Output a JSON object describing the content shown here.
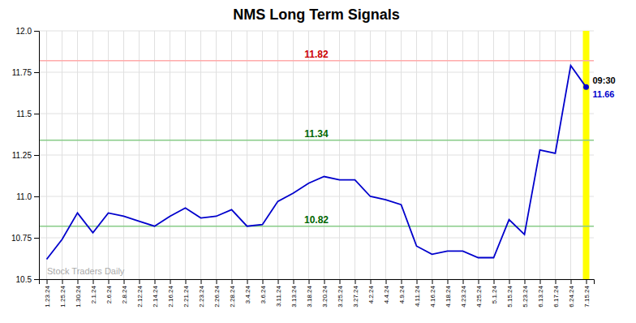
{
  "chart_data": {
    "type": "line",
    "title": "NMS Long Term Signals",
    "categories": [
      "1.23.24",
      "1.25.24",
      "1.30.24",
      "2.1.24",
      "2.6.24",
      "2.8.24",
      "2.12.24",
      "2.14.24",
      "2.16.24",
      "2.21.24",
      "2.23.24",
      "2.26.24",
      "2.28.24",
      "3.4.24",
      "3.6.24",
      "3.11.24",
      "3.13.24",
      "3.18.24",
      "3.20.24",
      "3.25.24",
      "3.27.24",
      "4.2.24",
      "4.4.24",
      "4.9.24",
      "4.11.24",
      "4.16.24",
      "4.18.24",
      "4.23.24",
      "4.25.24",
      "5.1.24",
      "5.15.24",
      "5.23.24",
      "6.13.24",
      "6.17.24",
      "6.24.24",
      "7.15.24"
    ],
    "values": [
      10.62,
      10.74,
      10.9,
      10.78,
      10.9,
      10.88,
      10.85,
      10.82,
      10.88,
      10.93,
      10.87,
      10.88,
      10.92,
      10.82,
      10.83,
      10.97,
      11.02,
      11.08,
      11.12,
      11.1,
      11.1,
      11.0,
      10.98,
      10.95,
      10.7,
      10.65,
      10.67,
      10.67,
      10.63,
      10.63,
      10.86,
      10.77,
      11.28,
      11.26,
      11.79,
      11.66
    ],
    "color": "#0000cc",
    "ylim": [
      10.5,
      12.0
    ],
    "yticks": [
      10.5,
      10.75,
      {
        "value": 11.0,
        "label": "11.0"
      },
      11.25,
      11.5,
      11.75,
      {
        "value": 12.0,
        "label": "12.0"
      }
    ],
    "grid": true,
    "hlines": [
      {
        "value": 11.82,
        "label": "11.82",
        "color": "#ffaaaa",
        "label_color": "#cc0000"
      },
      {
        "value": 11.34,
        "label": "11.34",
        "color": "#88cc88",
        "label_color": "#006600"
      },
      {
        "value": 10.82,
        "label": "10.82",
        "color": "#88cc88",
        "label_color": "#006600"
      }
    ],
    "vline": {
      "x": "7.15.24",
      "color": "#ffff00"
    },
    "last_point": {
      "x": "7.15.24",
      "color": "#0000cc"
    },
    "annotations": [
      {
        "text": "09:30",
        "color": "#000000"
      },
      {
        "text": "11.66",
        "color": "#0000cc"
      }
    ],
    "watermark": {
      "text": "Stock Traders Daily",
      "color": "#aaaaaa"
    }
  }
}
